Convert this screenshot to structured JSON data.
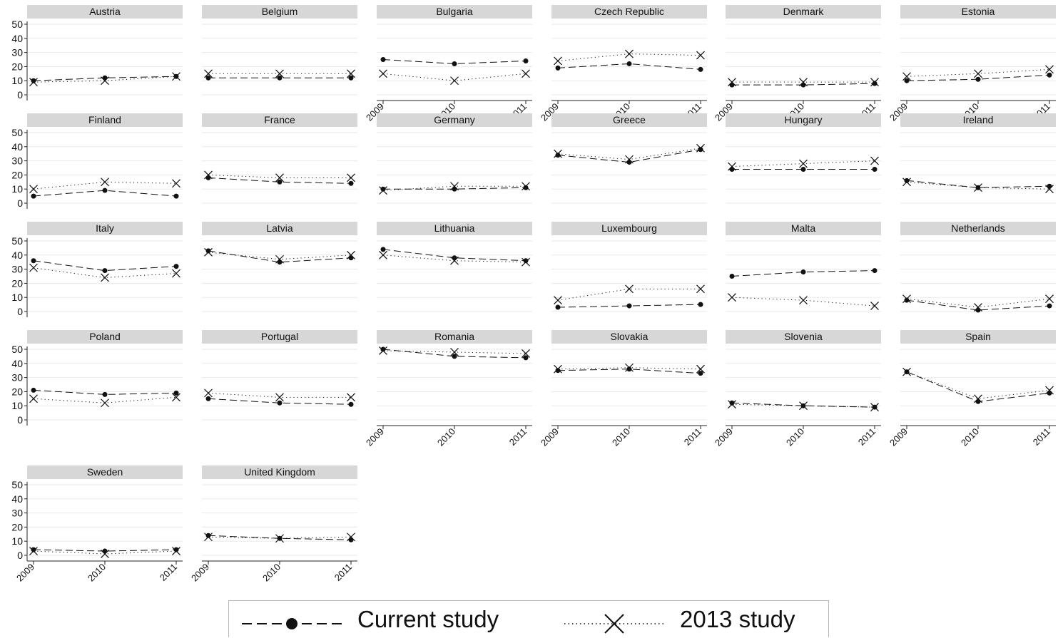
{
  "chart_data": {
    "type": "line",
    "layout": "small-multiples",
    "title": "",
    "xlabel": "",
    "ylabel": "",
    "x": [
      "2009",
      "2010",
      "2011"
    ],
    "yticks": [
      0,
      10,
      20,
      30,
      40,
      50
    ],
    "ylim": [
      0,
      52
    ],
    "grid": true,
    "legend": {
      "position": "bottom-center",
      "entries": [
        {
          "name": "Current study",
          "marker": "dot",
          "line": "dashed"
        },
        {
          "name": "2013 study",
          "marker": "x",
          "line": "dotted"
        }
      ]
    },
    "panels": [
      {
        "country": "Austria",
        "current": [
          10,
          12,
          13
        ],
        "study2013": [
          9,
          10,
          13
        ]
      },
      {
        "country": "Belgium",
        "current": [
          12,
          12,
          12
        ],
        "study2013": [
          15,
          15,
          15
        ]
      },
      {
        "country": "Bulgaria",
        "current": [
          25,
          22,
          24
        ],
        "study2013": [
          15,
          10,
          15
        ]
      },
      {
        "country": "Czech Republic",
        "current": [
          19,
          22,
          18
        ],
        "study2013": [
          24,
          29,
          28
        ]
      },
      {
        "country": "Denmark",
        "current": [
          7,
          7,
          8
        ],
        "study2013": [
          9,
          9,
          9
        ]
      },
      {
        "country": "Estonia",
        "current": [
          10,
          11,
          14
        ],
        "study2013": [
          13,
          15,
          18
        ]
      },
      {
        "country": "Finland",
        "current": [
          5,
          9,
          5
        ],
        "study2013": [
          10,
          15,
          14
        ]
      },
      {
        "country": "France",
        "current": [
          18,
          15,
          14
        ],
        "study2013": [
          20,
          18,
          18
        ]
      },
      {
        "country": "Germany",
        "current": [
          10,
          10,
          11
        ],
        "study2013": [
          9,
          12,
          12
        ]
      },
      {
        "country": "Greece",
        "current": [
          34,
          29,
          38
        ],
        "study2013": [
          35,
          31,
          39
        ]
      },
      {
        "country": "Hungary",
        "current": [
          24,
          24,
          24
        ],
        "study2013": [
          26,
          28,
          30
        ]
      },
      {
        "country": "Ireland",
        "current": [
          16,
          11,
          12
        ],
        "study2013": [
          15,
          11,
          10
        ]
      },
      {
        "country": "Italy",
        "current": [
          36,
          29,
          32
        ],
        "study2013": [
          31,
          24,
          27
        ]
      },
      {
        "country": "Latvia",
        "current": [
          43,
          35,
          38
        ],
        "study2013": [
          42,
          37,
          40
        ]
      },
      {
        "country": "Lithuania",
        "current": [
          44,
          38,
          36
        ],
        "study2013": [
          40,
          36,
          35
        ]
      },
      {
        "country": "Luxembourg",
        "current": [
          3,
          4,
          5
        ],
        "study2013": [
          8,
          16,
          16
        ]
      },
      {
        "country": "Malta",
        "current": [
          25,
          28,
          29
        ],
        "study2013": [
          10,
          8,
          4
        ]
      },
      {
        "country": "Netherlands",
        "current": [
          8,
          1,
          4
        ],
        "study2013": [
          9,
          3,
          9
        ]
      },
      {
        "country": "Poland",
        "current": [
          21,
          18,
          19
        ],
        "study2013": [
          15,
          12,
          16
        ]
      },
      {
        "country": "Portugal",
        "current": [
          15,
          12,
          11
        ],
        "study2013": [
          19,
          16,
          16
        ]
      },
      {
        "country": "Romania",
        "current": [
          50,
          45,
          44
        ],
        "study2013": [
          49,
          48,
          47
        ]
      },
      {
        "country": "Slovakia",
        "current": [
          35,
          36,
          33
        ],
        "study2013": [
          36,
          37,
          36
        ]
      },
      {
        "country": "Slovenia",
        "current": [
          12,
          10,
          9
        ],
        "study2013": [
          11,
          10,
          9
        ]
      },
      {
        "country": "Spain",
        "current": [
          34,
          13,
          19
        ],
        "study2013": [
          34,
          15,
          21
        ]
      },
      {
        "country": "Sweden",
        "current": [
          4,
          3,
          4
        ],
        "study2013": [
          3,
          1,
          3
        ]
      },
      {
        "country": "United Kingdom",
        "current": [
          14,
          12,
          11
        ],
        "study2013": [
          13,
          12,
          13
        ]
      }
    ]
  }
}
